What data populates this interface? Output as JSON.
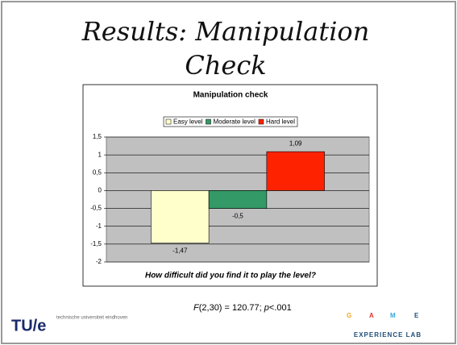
{
  "slide": {
    "title": "Results: Manipulation Check",
    "footnote": [
      "F",
      "(2,30) = 120.77; ",
      "p",
      "<.001"
    ],
    "tue_logo": "TU/e",
    "tue_name": "technische universiteit eindhoven",
    "game_letters": [
      "G",
      "A",
      "M",
      "E"
    ],
    "game_sub": "EXPERIENCE LAB"
  },
  "chart_data": {
    "type": "bar",
    "title": "Manipulation check",
    "x_label": "How difficult did you find it to play the level?",
    "categories": [
      null
    ],
    "series": [
      {
        "name": "Easy level",
        "color": "#ffffcc",
        "values": [
          -1.47
        ],
        "value_labels": [
          "-1,47"
        ]
      },
      {
        "name": "Moderate level",
        "color": "#339966",
        "values": [
          -0.5
        ],
        "value_labels": [
          "-0,5"
        ]
      },
      {
        "name": "Hard level",
        "color": "#ff2200",
        "values": [
          1.09
        ],
        "value_labels": [
          "1,09"
        ]
      }
    ],
    "ylim": [
      -2,
      1.5
    ],
    "yticks": [
      {
        "value": -2,
        "label": "-2"
      },
      {
        "value": -1.5,
        "label": "-1,5"
      },
      {
        "value": -1,
        "label": "-1"
      },
      {
        "value": -0.5,
        "label": "-0,5"
      },
      {
        "value": 0,
        "label": "0"
      },
      {
        "value": 0.5,
        "label": "0,5"
      },
      {
        "value": 1,
        "label": "1"
      },
      {
        "value": 1.5,
        "label": "1,5"
      }
    ],
    "grid": true,
    "legend": "top"
  }
}
